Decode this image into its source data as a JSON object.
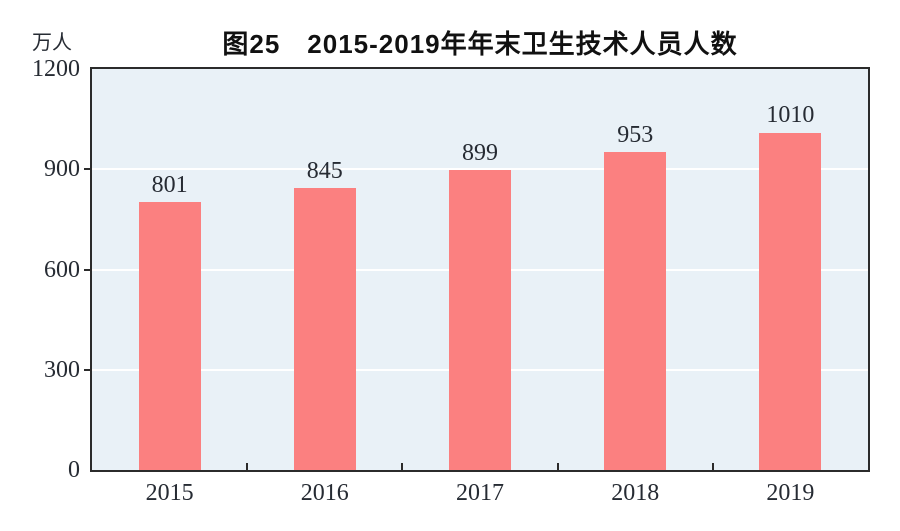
{
  "chart_data": {
    "type": "bar",
    "title": "图25　2015-2019年年末卫生技术人员人数",
    "ylabel_unit": "万人",
    "categories": [
      "2015",
      "2016",
      "2017",
      "2018",
      "2019"
    ],
    "values": [
      801,
      845,
      899,
      953,
      1010
    ],
    "value_labels": [
      "801",
      "845",
      "899",
      "953",
      "1010"
    ],
    "ylim": [
      0,
      1200
    ],
    "yticks": [
      0,
      300,
      600,
      900,
      1200
    ],
    "gridline_values": [
      300,
      600,
      900
    ],
    "grid": true,
    "legend": false,
    "colors": {
      "bar_fill": "#fb8080",
      "plot_background": "#e9f1f7",
      "gridline": "#ffffff",
      "axis": "#2b2b2b",
      "label_text": "#262b33",
      "title_text": "#111111",
      "page_background": "#ffffff"
    }
  }
}
